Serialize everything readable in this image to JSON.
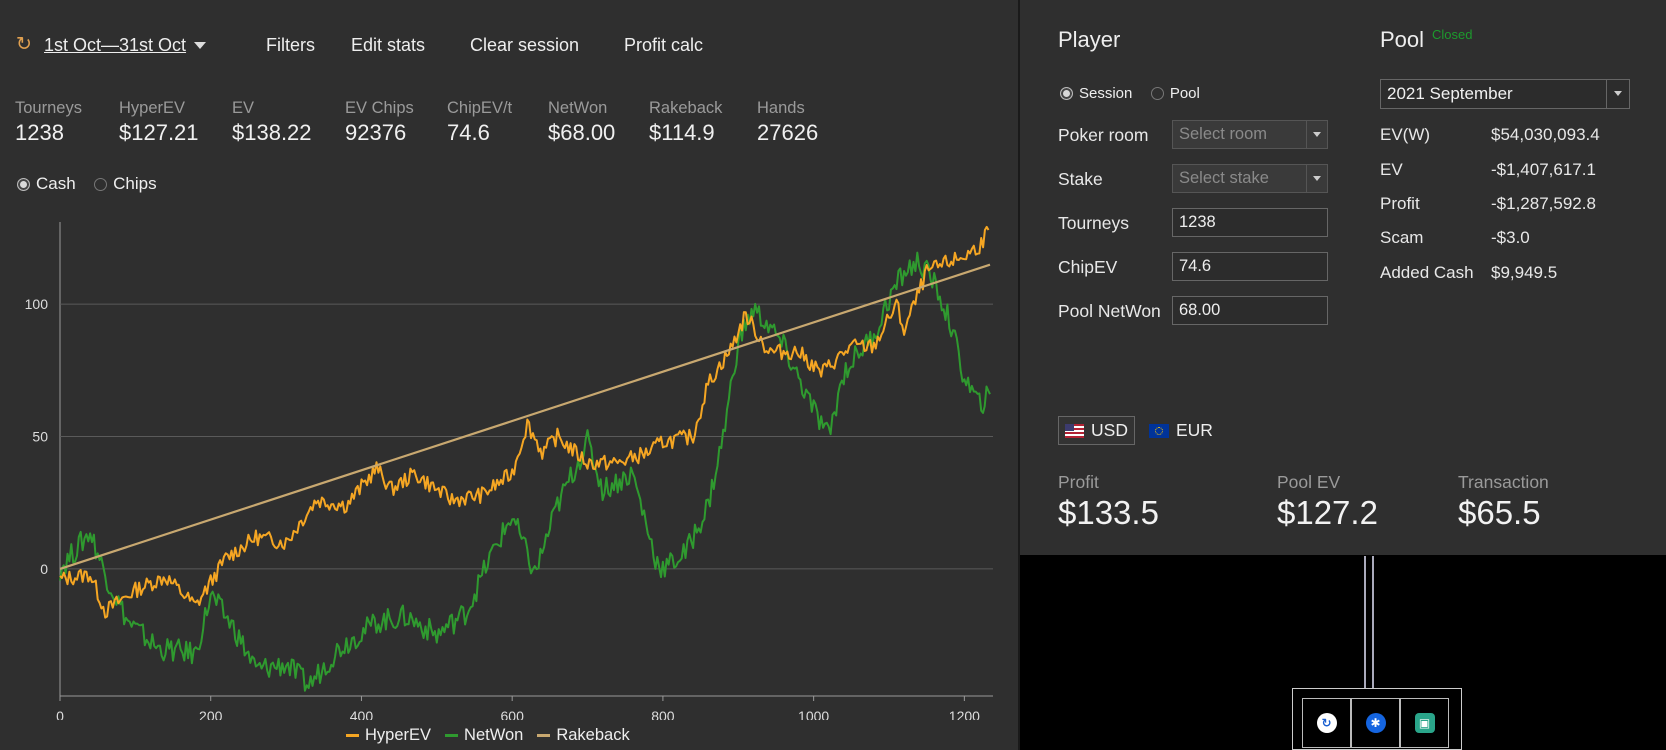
{
  "toolbar": {
    "date_range": "1st Oct—31st Oct",
    "filters": "Filters",
    "edit_stats": "Edit stats",
    "clear_session": "Clear session",
    "profit_calc": "Profit calc"
  },
  "stats": [
    {
      "label": "Tourneys",
      "value": "1238"
    },
    {
      "label": "HyperEV",
      "value": "$127.21"
    },
    {
      "label": "EV",
      "value": "$138.22"
    },
    {
      "label": "EV Chips",
      "value": "92376"
    },
    {
      "label": "ChipEV/t",
      "value": "74.6"
    },
    {
      "label": "NetWon",
      "value": "$68.00"
    },
    {
      "label": "Rakeback",
      "value": "$114.9"
    },
    {
      "label": "Hands",
      "value": "27626"
    }
  ],
  "view_mode": {
    "cash": "Cash",
    "chips": "Chips",
    "selected": "cash"
  },
  "chart_data": {
    "type": "line",
    "xlim": [
      0,
      1238
    ],
    "ylim": [
      -48,
      128
    ],
    "x_ticks": [
      "0",
      "200",
      "400",
      "600",
      "800",
      "1000",
      "1200"
    ],
    "y_ticks": [
      "0",
      "50",
      "100"
    ],
    "grid": "horizontal",
    "legend_position": "bottom-center",
    "series": [
      {
        "name": "HyperEV",
        "color": "#f5a623",
        "points": [
          [
            0,
            -4
          ],
          [
            40,
            -2
          ],
          [
            60,
            -16
          ],
          [
            100,
            -8
          ],
          [
            140,
            -3
          ],
          [
            180,
            -14
          ],
          [
            220,
            4
          ],
          [
            260,
            12
          ],
          [
            300,
            10
          ],
          [
            340,
            26
          ],
          [
            380,
            24
          ],
          [
            420,
            38
          ],
          [
            440,
            30
          ],
          [
            470,
            36
          ],
          [
            520,
            26
          ],
          [
            560,
            28
          ],
          [
            600,
            36
          ],
          [
            620,
            55
          ],
          [
            640,
            44
          ],
          [
            660,
            50
          ],
          [
            700,
            40
          ],
          [
            740,
            40
          ],
          [
            780,
            44
          ],
          [
            800,
            48
          ],
          [
            840,
            50
          ],
          [
            860,
            70
          ],
          [
            890,
            83
          ],
          [
            910,
            96
          ],
          [
            940,
            82
          ],
          [
            980,
            82
          ],
          [
            1010,
            74
          ],
          [
            1050,
            84
          ],
          [
            1080,
            84
          ],
          [
            1110,
            100
          ],
          [
            1120,
            90
          ],
          [
            1150,
            112
          ],
          [
            1180,
            116
          ],
          [
            1200,
            118
          ],
          [
            1220,
            122
          ],
          [
            1232,
            128
          ]
        ]
      },
      {
        "name": "NetWon",
        "color": "#2f9a2f",
        "points": [
          [
            0,
            0
          ],
          [
            40,
            14
          ],
          [
            60,
            -2
          ],
          [
            90,
            -20
          ],
          [
            130,
            -30
          ],
          [
            180,
            -32
          ],
          [
            200,
            -10
          ],
          [
            230,
            -22
          ],
          [
            260,
            -38
          ],
          [
            300,
            -36
          ],
          [
            330,
            -44
          ],
          [
            370,
            -30
          ],
          [
            420,
            -20
          ],
          [
            460,
            -18
          ],
          [
            500,
            -25
          ],
          [
            540,
            -16
          ],
          [
            570,
            4
          ],
          [
            600,
            20
          ],
          [
            630,
            -2
          ],
          [
            660,
            24
          ],
          [
            700,
            48
          ],
          [
            720,
            30
          ],
          [
            760,
            36
          ],
          [
            790,
            4
          ],
          [
            800,
            0
          ],
          [
            830,
            6
          ],
          [
            860,
            24
          ],
          [
            880,
            50
          ],
          [
            900,
            86
          ],
          [
            920,
            98
          ],
          [
            940,
            92
          ],
          [
            960,
            84
          ],
          [
            980,
            72
          ],
          [
            1000,
            60
          ],
          [
            1020,
            50
          ],
          [
            1040,
            74
          ],
          [
            1060,
            82
          ],
          [
            1080,
            88
          ],
          [
            1100,
            102
          ],
          [
            1120,
            112
          ],
          [
            1140,
            116
          ],
          [
            1160,
            108
          ],
          [
            1180,
            94
          ],
          [
            1200,
            72
          ],
          [
            1220,
            62
          ],
          [
            1234,
            66
          ]
        ]
      },
      {
        "name": "Rakeback",
        "color": "#c8a870",
        "points": [
          [
            0,
            0
          ],
          [
            1234,
            114.9
          ]
        ]
      }
    ]
  },
  "player": {
    "title": "Player",
    "scope": {
      "session": "Session",
      "pool": "Pool",
      "selected": "session"
    },
    "poker_room_label": "Poker room",
    "poker_room_placeholder": "Select room",
    "stake_label": "Stake",
    "stake_placeholder": "Select stake",
    "tourneys_label": "Tourneys",
    "tourneys_value": "1238",
    "chipev_label": "ChipEV",
    "chipev_value": "74.6",
    "pool_netwon_label": "Pool NetWon",
    "pool_netwon_value": "68.00"
  },
  "pool": {
    "title": "Pool",
    "status": "Closed",
    "status_color": "#1d9a2d",
    "month": "2021 September",
    "rows": [
      {
        "label": "EV(W)",
        "value": "$54,030,093.4"
      },
      {
        "label": "EV",
        "value": "-$1,407,617.1"
      },
      {
        "label": "Profit",
        "value": "-$1,287,592.8"
      },
      {
        "label": "Scam",
        "value": "-$3.0"
      },
      {
        "label": "Added Cash",
        "value": "$9,949.5"
      }
    ]
  },
  "currency": {
    "usd": "USD",
    "eur": "EUR",
    "selected": "usd"
  },
  "summary": [
    {
      "label": "Profit",
      "value": "$133.5"
    },
    {
      "label": "Pool EV",
      "value": "$127.2"
    },
    {
      "label": "Transaction",
      "value": "$65.5"
    }
  ],
  "tray": {
    "icons": [
      "refresh-app-icon",
      "bluetooth-icon",
      "wallet-icon"
    ]
  }
}
